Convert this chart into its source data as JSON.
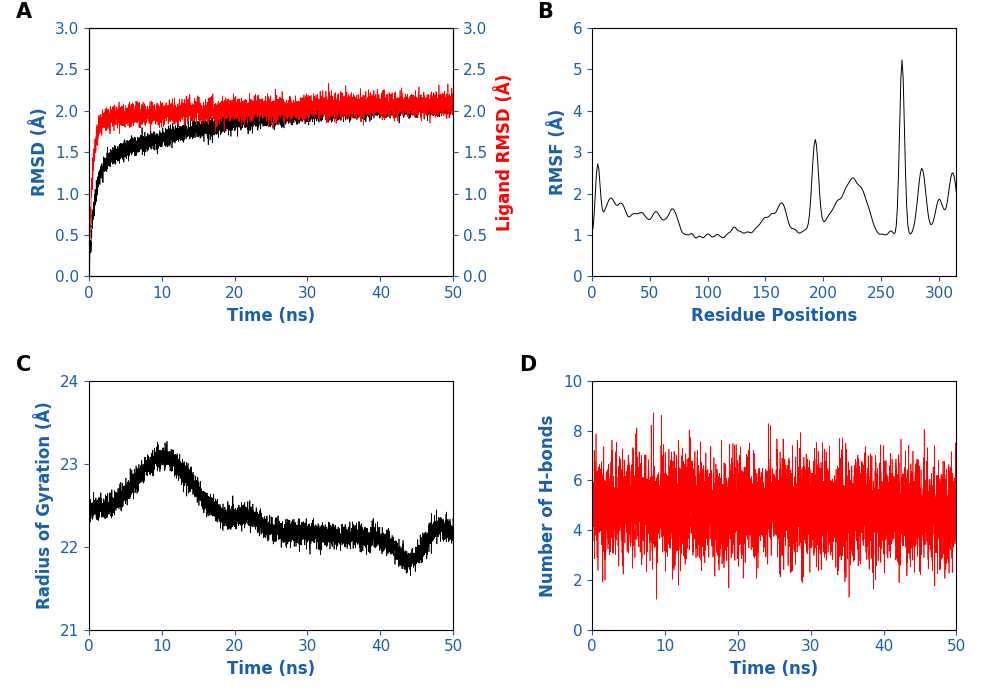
{
  "panel_labels": [
    "A",
    "B",
    "C",
    "D"
  ],
  "panel_label_fontsize": 15,
  "panel_label_fontweight": "bold",
  "A": {
    "xlabel": "Time (ns)",
    "ylabel": "RMSD (Å)",
    "ylabel_right": "Ligand RMSD (Å)",
    "xlim": [
      0,
      50
    ],
    "ylim": [
      0.0,
      3.0
    ],
    "xticks": [
      0,
      10,
      20,
      30,
      40,
      50
    ],
    "yticks": [
      0.0,
      0.5,
      1.0,
      1.5,
      2.0,
      2.5,
      3.0
    ],
    "color_black": "#000000",
    "color_red": "#ff0000",
    "linewidth": 0.5
  },
  "B": {
    "xlabel": "Residue Positions",
    "ylabel": "RMSF (Å)",
    "xlim": [
      0,
      315
    ],
    "ylim": [
      0,
      6
    ],
    "xticks": [
      0,
      50,
      100,
      150,
      200,
      250,
      300
    ],
    "yticks": [
      0,
      1,
      2,
      3,
      4,
      5,
      6
    ],
    "color_black": "#000000",
    "linewidth": 0.7
  },
  "C": {
    "xlabel": "Time (ns)",
    "ylabel": "Radius of Gyration (Å)",
    "xlim": [
      0,
      50
    ],
    "ylim": [
      21,
      24
    ],
    "xticks": [
      0,
      10,
      20,
      30,
      40,
      50
    ],
    "yticks": [
      21,
      22,
      23,
      24
    ],
    "color_black": "#000000",
    "linewidth": 0.5
  },
  "D": {
    "xlabel": "Time (ns)",
    "ylabel": "Number of H-bonds",
    "xlim": [
      0,
      50
    ],
    "ylim": [
      0,
      10
    ],
    "xticks": [
      0,
      10,
      20,
      30,
      40,
      50
    ],
    "yticks": [
      0,
      2,
      4,
      6,
      8,
      10
    ],
    "color_red": "#ff0000",
    "linewidth": 0.5
  },
  "tick_labelsize": 11,
  "axis_labelsize": 12,
  "axis_label_color": "#1a5faa",
  "tick_color": "#1a5faa",
  "axis_labelweight": "bold",
  "background": "#ffffff"
}
